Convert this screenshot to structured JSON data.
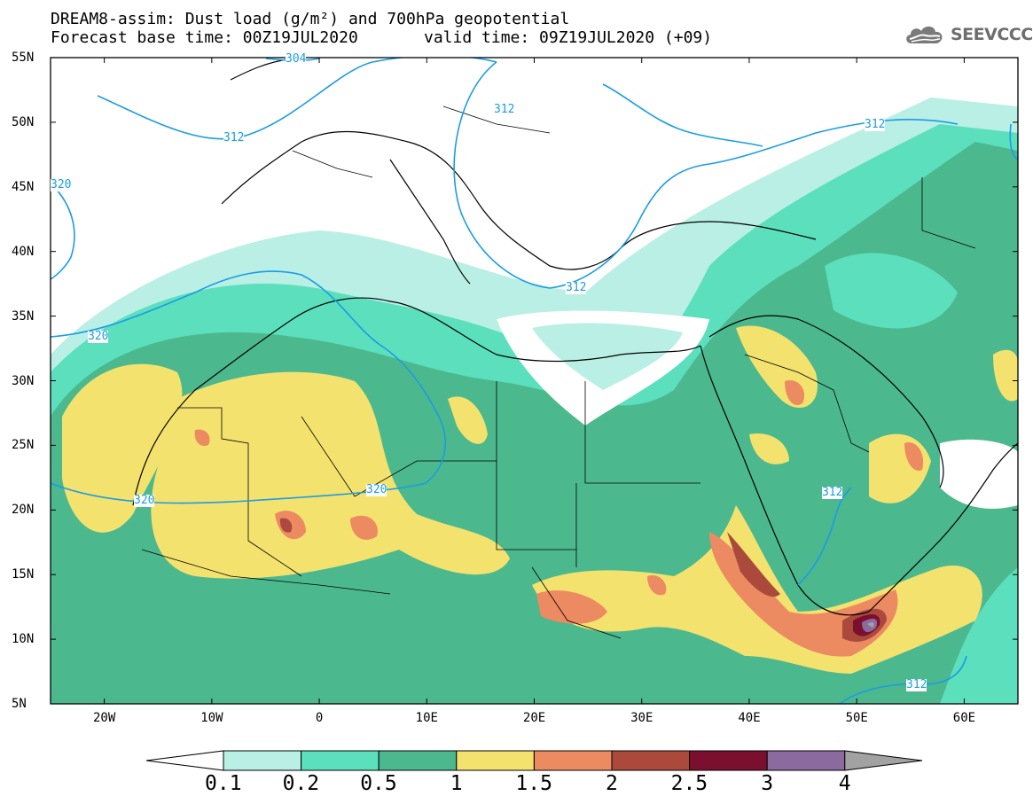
{
  "title": {
    "line1": "DREAM8-assim: Dust load (g/m²) and 700hPa geopotential",
    "forecast_base": "Forecast base time: 00Z19JUL2020",
    "valid": "valid time: 09Z19JUL2020 (+09)"
  },
  "logo": {
    "text": "SEEVCCC",
    "icon": "cloud-icon"
  },
  "map": {
    "lon_range": [
      -25,
      65
    ],
    "lat_range": [
      5,
      55
    ],
    "lon_ticks": [
      {
        "lon": -20,
        "label": "20W"
      },
      {
        "lon": -10,
        "label": "10W"
      },
      {
        "lon": 0,
        "label": "0"
      },
      {
        "lon": 10,
        "label": "10E"
      },
      {
        "lon": 20,
        "label": "20E"
      },
      {
        "lon": 30,
        "label": "30E"
      },
      {
        "lon": 40,
        "label": "40E"
      },
      {
        "lon": 50,
        "label": "50E"
      },
      {
        "lon": 60,
        "label": "60E"
      }
    ],
    "lat_ticks": [
      {
        "lat": 55,
        "label": "55N"
      },
      {
        "lat": 50,
        "label": "50N"
      },
      {
        "lat": 45,
        "label": "45N"
      },
      {
        "lat": 40,
        "label": "40N"
      },
      {
        "lat": 35,
        "label": "35N"
      },
      {
        "lat": 30,
        "label": "30N"
      },
      {
        "lat": 25,
        "label": "25N"
      },
      {
        "lat": 20,
        "label": "20N"
      },
      {
        "lat": 15,
        "label": "15N"
      },
      {
        "lat": 10,
        "label": "10N"
      },
      {
        "lat": 5,
        "label": "5N"
      }
    ],
    "contour_labels": [
      "304",
      "312",
      "320"
    ],
    "contour_color": "#1a9ce6"
  },
  "colorbar": {
    "labels": [
      "0.1",
      "0.2",
      "0.5",
      "1",
      "1.5",
      "2",
      "2.5",
      "3",
      "4"
    ],
    "colors": [
      "#b9efe4",
      "#5cdfbd",
      "#4cb88e",
      "#f4e26f",
      "#ec8a62",
      "#ab4a3c",
      "#7b0f2e",
      "#8a6a9f",
      "#a2a2a2"
    ]
  }
}
